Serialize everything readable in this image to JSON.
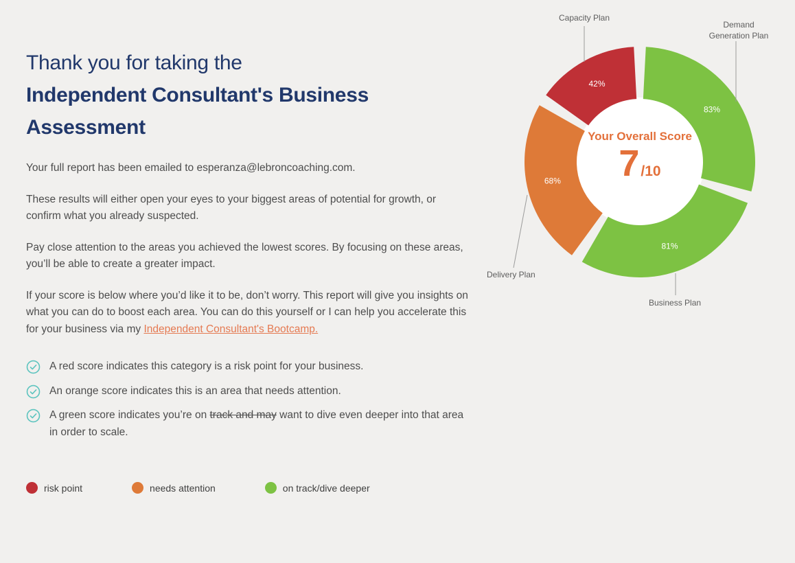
{
  "intro": {
    "heading_line1": "Thank you for taking the",
    "heading_line2": "Independent Consultant's Business",
    "heading_line3": "Assessment",
    "p1_before_email": "Your full report has been emailed to ",
    "p1_email": "esperanza@lebroncoaching.com",
    "p1_after_email": ".",
    "p2": "These results will either open your eyes to your biggest areas of potential for growth, or confirm what you already suspected.",
    "p3": "Pay close attention to the areas you achieved the lowest scores. By focusing on these areas, you’ll be able to create a greater impact.",
    "p4_before_link": "If your score is below where you’d like it to be, don’t worry. This report will give you insights on what you can do to boost each area. You can do this yourself or I can help you accelerate this for your business via my ",
    "p4_link": "Independent Consultant's Bootcamp.",
    "bullets": [
      {
        "pre": "A red score indicates this category is a risk point for your business.",
        "struck": "",
        "post": ""
      },
      {
        "pre": "An orange score indicates this is an area that needs attention.",
        "struck": "",
        "post": ""
      },
      {
        "pre": "A green score indicates you’re on ",
        "struck": "track and may",
        "post": " want to dive even deeper into that area in order to scale."
      }
    ]
  },
  "legend": [
    {
      "label": "risk point",
      "color": "#bf3036"
    },
    {
      "label": "needs attention",
      "color": "#de7a38"
    },
    {
      "label": "on track/dive deeper",
      "color": "#7dc243"
    }
  ],
  "chart_data": {
    "type": "pie",
    "variant": "donut",
    "center_title": "Your Overall Score",
    "overall_score": "7",
    "overall_denominator": "/10",
    "value_suffix": "%",
    "segments": [
      {
        "label": "Demand Generation Plan",
        "value": 83,
        "color": "#7dc243"
      },
      {
        "label": "Business Plan",
        "value": 81,
        "color": "#7dc243"
      },
      {
        "label": "Delivery Plan",
        "value": 68,
        "color": "#de7a38"
      },
      {
        "label": "Capacity Plan",
        "value": 42,
        "color": "#bf3036"
      }
    ],
    "legend_position": "bottom-left",
    "grid": false
  },
  "colors": {
    "background": "#f1f0ee",
    "heading": "#21386b",
    "body_text": "#4d4d4d",
    "accent_orange": "#e3703a",
    "link": "#e57a52",
    "check_teal": "#5ec4bf"
  }
}
